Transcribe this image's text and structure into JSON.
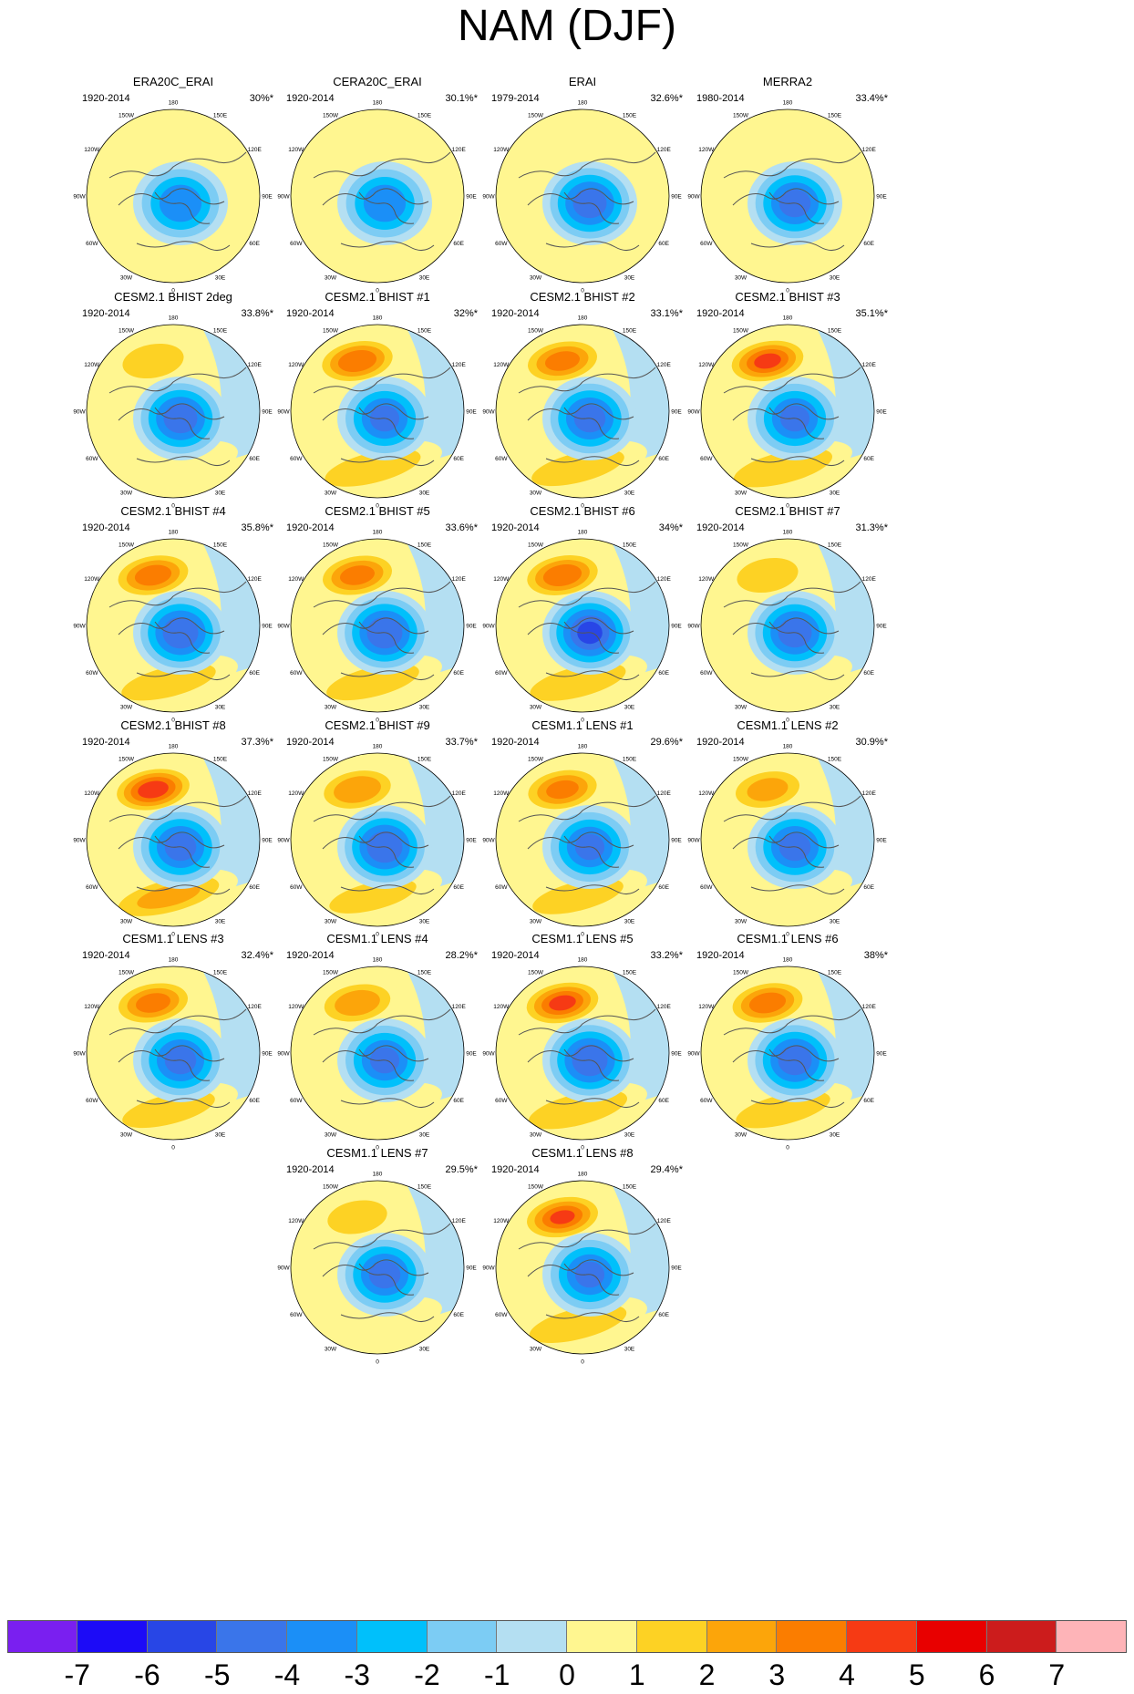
{
  "title": "NAM (DJF)",
  "longitude_labels": [
    "180",
    "150E",
    "120E",
    "90E",
    "60E",
    "30E",
    "0",
    "30W",
    "60W",
    "90W",
    "120W",
    "150W"
  ],
  "panels": [
    {
      "title": "ERA20C_ERAI",
      "period": "1920-2014",
      "pct": "30%*",
      "pos_amp": 1.5,
      "neg_amp": 4.8
    },
    {
      "title": "CERA20C_ERAI",
      "period": "1920-2014",
      "pct": "30.1%*",
      "pos_amp": 1.5,
      "neg_amp": 4.8
    },
    {
      "title": "ERAI",
      "period": "1979-2014",
      "pct": "32.6%*",
      "pos_amp": 1.2,
      "neg_amp": 5.6
    },
    {
      "title": "MERRA2",
      "period": "1980-2014",
      "pct": "33.4%*",
      "pos_amp": 1.5,
      "neg_amp": 5.4
    },
    {
      "title": "CESM2.1 BHIST 2deg",
      "period": "1920-2014",
      "pct": "33.8%*",
      "pos_amp": 2.8,
      "neg_amp": 5.6
    },
    {
      "title": "CESM2.1 BHIST #1",
      "period": "1920-2014",
      "pct": "32%*",
      "pos_amp": 4.8,
      "neg_amp": 5.2
    },
    {
      "title": "CESM2.1 BHIST #2",
      "period": "1920-2014",
      "pct": "33.1%*",
      "pos_amp": 4.4,
      "neg_amp": 5.4
    },
    {
      "title": "CESM2.1 BHIST #3",
      "period": "1920-2014",
      "pct": "35.1%*",
      "pos_amp": 5.2,
      "neg_amp": 5.2
    },
    {
      "title": "CESM2.1 BHIST #4",
      "period": "1920-2014",
      "pct": "35.8%*",
      "pos_amp": 4.6,
      "neg_amp": 5.8
    },
    {
      "title": "CESM2.1 BHIST #5",
      "period": "1920-2014",
      "pct": "33.6%*",
      "pos_amp": 4.4,
      "neg_amp": 5.8
    },
    {
      "title": "CESM2.1 BHIST #6",
      "period": "1920-2014",
      "pct": "34%*",
      "pos_amp": 4.8,
      "neg_amp": 6.2
    },
    {
      "title": "CESM2.1 BHIST #7",
      "period": "1920-2014",
      "pct": "31.3%*",
      "pos_amp": 2.8,
      "neg_amp": 5.6
    },
    {
      "title": "CESM2.1 BHIST #8",
      "period": "1920-2014",
      "pct": "37.3%*",
      "pos_amp": 5.6,
      "neg_amp": 5.4
    },
    {
      "title": "CESM2.1 BHIST #9",
      "period": "1920-2014",
      "pct": "33.7%*",
      "pos_amp": 3.8,
      "neg_amp": 5.8
    },
    {
      "title": "CESM1.1 LENS #1",
      "period": "1920-2014",
      "pct": "29.6%*",
      "pos_amp": 4.2,
      "neg_amp": 5.2
    },
    {
      "title": "CESM1.1 LENS #2",
      "period": "1920-2014",
      "pct": "30.9%*",
      "pos_amp": 3.2,
      "neg_amp": 5.4
    },
    {
      "title": "CESM1.1 LENS #3",
      "period": "1920-2014",
      "pct": "32.4%*",
      "pos_amp": 4.4,
      "neg_amp": 5.4
    },
    {
      "title": "CESM1.1 LENS #4",
      "period": "1920-2014",
      "pct": "28.2%*",
      "pos_amp": 3.6,
      "neg_amp": 5.2
    },
    {
      "title": "CESM1.1 LENS #5",
      "period": "1920-2014",
      "pct": "33.2%*",
      "pos_amp": 5.2,
      "neg_amp": 5.8
    },
    {
      "title": "CESM1.1 LENS #6",
      "period": "1920-2014",
      "pct": "38%*",
      "pos_amp": 4.6,
      "neg_amp": 5.6
    },
    {
      "title": "CESM1.1 LENS #7",
      "period": "1920-2014",
      "pct": "29.5%*",
      "pos_amp": 2.6,
      "neg_amp": 5.4
    },
    {
      "title": "CESM1.1 LENS #8",
      "period": "1920-2014",
      "pct": "29.4%*",
      "pos_amp": 5.0,
      "neg_amp": 5.2
    }
  ],
  "colorbar": {
    "colors": [
      "#7a1ff0",
      "#1c0bf7",
      "#2846e6",
      "#3a75ea",
      "#1b8ff7",
      "#00c0fb",
      "#7cccf4",
      "#b4dff2",
      "#fff690",
      "#fdd224",
      "#fca50a",
      "#fb7d00",
      "#f63a14",
      "#e80000",
      "#cc1c1c",
      "#feb4b8"
    ],
    "labels": [
      "-7",
      "-6",
      "-5",
      "-4",
      "-3",
      "-2",
      "-1",
      "0",
      "1",
      "2",
      "3",
      "4",
      "5",
      "6",
      "7"
    ]
  }
}
